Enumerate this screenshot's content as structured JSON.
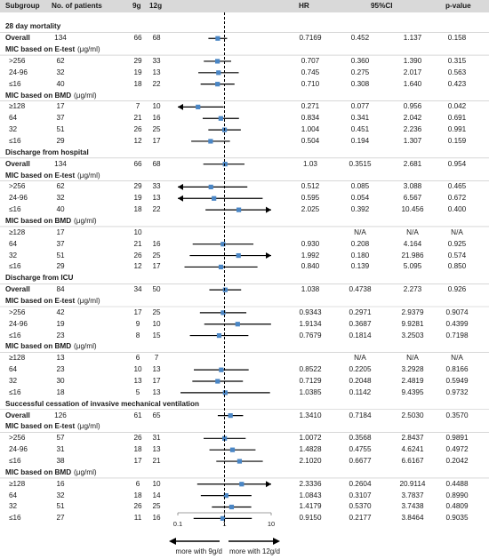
{
  "headers": {
    "subgroup": "Subgroup",
    "patients": "No. of patients",
    "g9": "9g",
    "g12": "12g",
    "hr": "HR",
    "ci": "95%CI",
    "pvalue": "p-value"
  },
  "chart_data": {
    "type": "forest",
    "x_scale": "log",
    "xlim": [
      0.1,
      10
    ],
    "reference_line": 1,
    "x_ticks": [
      "0.1",
      "1",
      "10"
    ],
    "favors_left": "more with 9g/d",
    "favors_right": "more with 12g/d",
    "rows": [
      {
        "kind": "section",
        "label": "28 day mortality"
      },
      {
        "kind": "data",
        "label": "Overall",
        "bold": true,
        "n": "134",
        "g9": "66",
        "g12": "68",
        "hr": "0.7169",
        "lo": "0.452",
        "hi": "1.137",
        "p": "0.158",
        "hr_v": 0.7169,
        "lo_v": 0.452,
        "hi_v": 1.137
      },
      {
        "kind": "subsection",
        "label": "MIC based on E-test",
        "unit": "(μg/ml)"
      },
      {
        "kind": "data",
        "label": ">256",
        "n": "62",
        "g9": "29",
        "g12": "33",
        "hr": "0.707",
        "lo": "0.360",
        "hi": "1.390",
        "p": "0.315",
        "hr_v": 0.707,
        "lo_v": 0.36,
        "hi_v": 1.39
      },
      {
        "kind": "data",
        "label": "24-96",
        "n": "32",
        "g9": "19",
        "g12": "13",
        "hr": "0.745",
        "lo": "0.275",
        "hi": "2.017",
        "p": "0.563",
        "hr_v": 0.745,
        "lo_v": 0.275,
        "hi_v": 2.017
      },
      {
        "kind": "data",
        "label": "≤16",
        "n": "40",
        "g9": "18",
        "g12": "22",
        "hr": "0.710",
        "lo": "0.308",
        "hi": "1.640",
        "p": "0.423",
        "hr_v": 0.71,
        "lo_v": 0.308,
        "hi_v": 1.64
      },
      {
        "kind": "subsection",
        "label": "MIC based on BMD",
        "unit": "(μg/ml)"
      },
      {
        "kind": "data",
        "label": "≥128",
        "n": "17",
        "g9": "7",
        "g12": "10",
        "hr": "0.271",
        "lo": "0.077",
        "hi": "0.956",
        "p": "0.042",
        "hr_v": 0.271,
        "lo_v": 0.077,
        "hi_v": 0.956
      },
      {
        "kind": "data",
        "label": "64",
        "n": "37",
        "g9": "21",
        "g12": "16",
        "hr": "0.834",
        "lo": "0.341",
        "hi": "2.042",
        "p": "0.691",
        "hr_v": 0.834,
        "lo_v": 0.341,
        "hi_v": 2.042
      },
      {
        "kind": "data",
        "label": "32",
        "n": "51",
        "g9": "26",
        "g12": "25",
        "hr": "1.004",
        "lo": "0.451",
        "hi": "2.236",
        "p": "0.991",
        "hr_v": 1.004,
        "lo_v": 0.451,
        "hi_v": 2.236
      },
      {
        "kind": "data",
        "label": "≤16",
        "n": "29",
        "g9": "12",
        "g12": "17",
        "hr": "0.504",
        "lo": "0.194",
        "hi": "1.307",
        "p": "0.159",
        "hr_v": 0.504,
        "lo_v": 0.194,
        "hi_v": 1.307
      },
      {
        "kind": "section",
        "label": "Discharge from hospital"
      },
      {
        "kind": "data",
        "label": "Overall",
        "bold": true,
        "n": "134",
        "g9": "66",
        "g12": "68",
        "hr": "1.03",
        "lo": "0.3515",
        "hi": "2.681",
        "p": "0.954",
        "hr_v": 1.03,
        "lo_v": 0.3515,
        "hi_v": 2.681
      },
      {
        "kind": "subsection",
        "label": "MIC based on E-test",
        "unit": "(μg/ml)"
      },
      {
        "kind": "data",
        "label": ">256",
        "n": "62",
        "g9": "29",
        "g12": "33",
        "hr": "0.512",
        "lo": "0.085",
        "hi": "3.088",
        "p": "0.465",
        "hr_v": 0.512,
        "lo_v": 0.085,
        "hi_v": 3.088
      },
      {
        "kind": "data",
        "label": "24-96",
        "n": "32",
        "g9": "19",
        "g12": "13",
        "hr": "0.595",
        "lo": "0.054",
        "hi": "6.567",
        "p": "0.672",
        "hr_v": 0.595,
        "lo_v": 0.054,
        "hi_v": 6.567
      },
      {
        "kind": "data",
        "label": "≤16",
        "n": "40",
        "g9": "18",
        "g12": "22",
        "hr": "2.025",
        "lo": "0.392",
        "hi": "10.456",
        "p": "0.400",
        "hr_v": 2.025,
        "lo_v": 0.392,
        "hi_v": 10.456
      },
      {
        "kind": "subsection",
        "label": "MIC based on BMD",
        "unit": "(μg/ml)"
      },
      {
        "kind": "data",
        "label": "≥128",
        "n": "17",
        "g9": "10",
        "g12": "",
        "hr": "",
        "lo": "N/A",
        "hi": "N/A",
        "p": "N/A",
        "hr_v": null,
        "lo_v": null,
        "hi_v": null
      },
      {
        "kind": "data",
        "label": "64",
        "n": "37",
        "g9": "21",
        "g12": "16",
        "hr": "0.930",
        "lo": "0.208",
        "hi": "4.164",
        "p": "0.925",
        "hr_v": 0.93,
        "lo_v": 0.208,
        "hi_v": 4.164
      },
      {
        "kind": "data",
        "label": "32",
        "n": "51",
        "g9": "26",
        "g12": "25",
        "hr": "1.992",
        "lo": "0.180",
        "hi": "21.986",
        "p": "0.574",
        "hr_v": 1.992,
        "lo_v": 0.18,
        "hi_v": 21.986
      },
      {
        "kind": "data",
        "label": "≤16",
        "n": "29",
        "g9": "12",
        "g12": "17",
        "hr": "0.840",
        "lo": "0.139",
        "hi": "5.095",
        "p": "0.850",
        "hr_v": 0.84,
        "lo_v": 0.139,
        "hi_v": 5.095
      },
      {
        "kind": "section",
        "label": "Discharge from ICU"
      },
      {
        "kind": "data",
        "label": "Overall",
        "bold": true,
        "n": "84",
        "g9": "34",
        "g12": "50",
        "hr": "1.038",
        "lo": "0.4738",
        "hi": "2.273",
        "p": "0.926",
        "hr_v": 1.038,
        "lo_v": 0.4738,
        "hi_v": 2.273
      },
      {
        "kind": "subsection",
        "label": "MIC based on E-test",
        "unit": "(μg/ml)"
      },
      {
        "kind": "data",
        "label": ">256",
        "n": "42",
        "g9": "17",
        "g12": "25",
        "hr": "0.9343",
        "lo": "0.2971",
        "hi": "2.9379",
        "p": "0.9074",
        "hr_v": 0.9343,
        "lo_v": 0.2971,
        "hi_v": 2.9379
      },
      {
        "kind": "data",
        "label": "24-96",
        "n": "19",
        "g9": "9",
        "g12": "10",
        "hr": "1.9134",
        "lo": "0.3687",
        "hi": "9.9281",
        "p": "0.4399",
        "hr_v": 1.9134,
        "lo_v": 0.3687,
        "hi_v": 9.9281
      },
      {
        "kind": "data",
        "label": "≤16",
        "n": "23",
        "g9": "8",
        "g12": "15",
        "hr": "0.7679",
        "lo": "0.1814",
        "hi": "3.2503",
        "p": "0.7198",
        "hr_v": 0.7679,
        "lo_v": 0.1814,
        "hi_v": 3.2503
      },
      {
        "kind": "subsection",
        "label": "MIC based on BMD",
        "unit": "(μg/ml)"
      },
      {
        "kind": "data",
        "label": "≥128",
        "n": "13",
        "g9": "6",
        "g12": "7",
        "hr": "",
        "lo": "N/A",
        "hi": "N/A",
        "p": "N/A",
        "hr_v": null,
        "lo_v": null,
        "hi_v": null
      },
      {
        "kind": "data",
        "label": "64",
        "n": "23",
        "g9": "10",
        "g12": "13",
        "hr": "0.8522",
        "lo": "0.2205",
        "hi": "3.2928",
        "p": "0.8166",
        "hr_v": 0.8522,
        "lo_v": 0.2205,
        "hi_v": 3.2928
      },
      {
        "kind": "data",
        "label": "32",
        "n": "30",
        "g9": "13",
        "g12": "17",
        "hr": "0.7129",
        "lo": "0.2048",
        "hi": "2.4819",
        "p": "0.5949",
        "hr_v": 0.7129,
        "lo_v": 0.2048,
        "hi_v": 2.4819
      },
      {
        "kind": "data",
        "label": "≤16",
        "n": "18",
        "g9": "5",
        "g12": "13",
        "hr": "1.0385",
        "lo": "0.1142",
        "hi": "9.4395",
        "p": "0.9732",
        "hr_v": 1.0385,
        "lo_v": 0.1142,
        "hi_v": 9.4395
      },
      {
        "kind": "section",
        "label": "Successful cessation of invasive mechanical ventilation"
      },
      {
        "kind": "data",
        "label": "Overall",
        "bold": true,
        "n": "126",
        "g9": "61",
        "g12": "65",
        "hr": "1.3410",
        "lo": "0.7184",
        "hi": "2.5030",
        "p": "0.3570",
        "hr_v": 1.341,
        "lo_v": 0.7184,
        "hi_v": 2.503
      },
      {
        "kind": "subsection",
        "label": "MIC based on E-test",
        "unit": "(μg/ml)"
      },
      {
        "kind": "data",
        "label": ">256",
        "n": "57",
        "g9": "26",
        "g12": "31",
        "hr": "1.0072",
        "lo": "0.3568",
        "hi": "2.8437",
        "p": "0.9891",
        "hr_v": 1.0072,
        "lo_v": 0.3568,
        "hi_v": 2.8437
      },
      {
        "kind": "data",
        "label": "24-96",
        "n": "31",
        "g9": "18",
        "g12": "13",
        "hr": "1.4828",
        "lo": "0.4755",
        "hi": "4.6241",
        "p": "0.4972",
        "hr_v": 1.4828,
        "lo_v": 0.4755,
        "hi_v": 4.6241
      },
      {
        "kind": "data",
        "label": "≤16",
        "n": "38",
        "g9": "17",
        "g12": "21",
        "hr": "2.1020",
        "lo": "0.6677",
        "hi": "6.6167",
        "p": "0.2042",
        "hr_v": 2.102,
        "lo_v": 0.6677,
        "hi_v": 6.6167
      },
      {
        "kind": "subsection",
        "label": "MIC based on BMD",
        "unit": "(μg/ml)"
      },
      {
        "kind": "data",
        "label": "≥128",
        "n": "16",
        "g9": "6",
        "g12": "10",
        "hr": "2.3336",
        "lo": "0.2604",
        "hi": "20.9114",
        "p": "0.4488",
        "hr_v": 2.3336,
        "lo_v": 0.2604,
        "hi_v": 20.9114
      },
      {
        "kind": "data",
        "label": "64",
        "n": "32",
        "g9": "18",
        "g12": "14",
        "hr": "1.0843",
        "lo": "0.3107",
        "hi": "3.7837",
        "p": "0.8990",
        "hr_v": 1.0843,
        "lo_v": 0.3107,
        "hi_v": 3.7837
      },
      {
        "kind": "data",
        "label": "32",
        "n": "51",
        "g9": "26",
        "g12": "25",
        "hr": "1.4179",
        "lo": "0.5370",
        "hi": "3.7438",
        "p": "0.4809",
        "hr_v": 1.4179,
        "lo_v": 0.537,
        "hi_v": 3.7438
      },
      {
        "kind": "data",
        "label": "≤16",
        "n": "27",
        "g9": "11",
        "g12": "16",
        "hr": "0.9150",
        "lo": "0.2177",
        "hi": "3.8464",
        "p": "0.9035",
        "hr_v": 0.915,
        "lo_v": 0.2177,
        "hi_v": 3.8464
      }
    ]
  },
  "colors": {
    "header_bg": "#d9d9d9",
    "marker": "#4a86c5",
    "line": "#000000",
    "separator": "#bfbfbf"
  }
}
